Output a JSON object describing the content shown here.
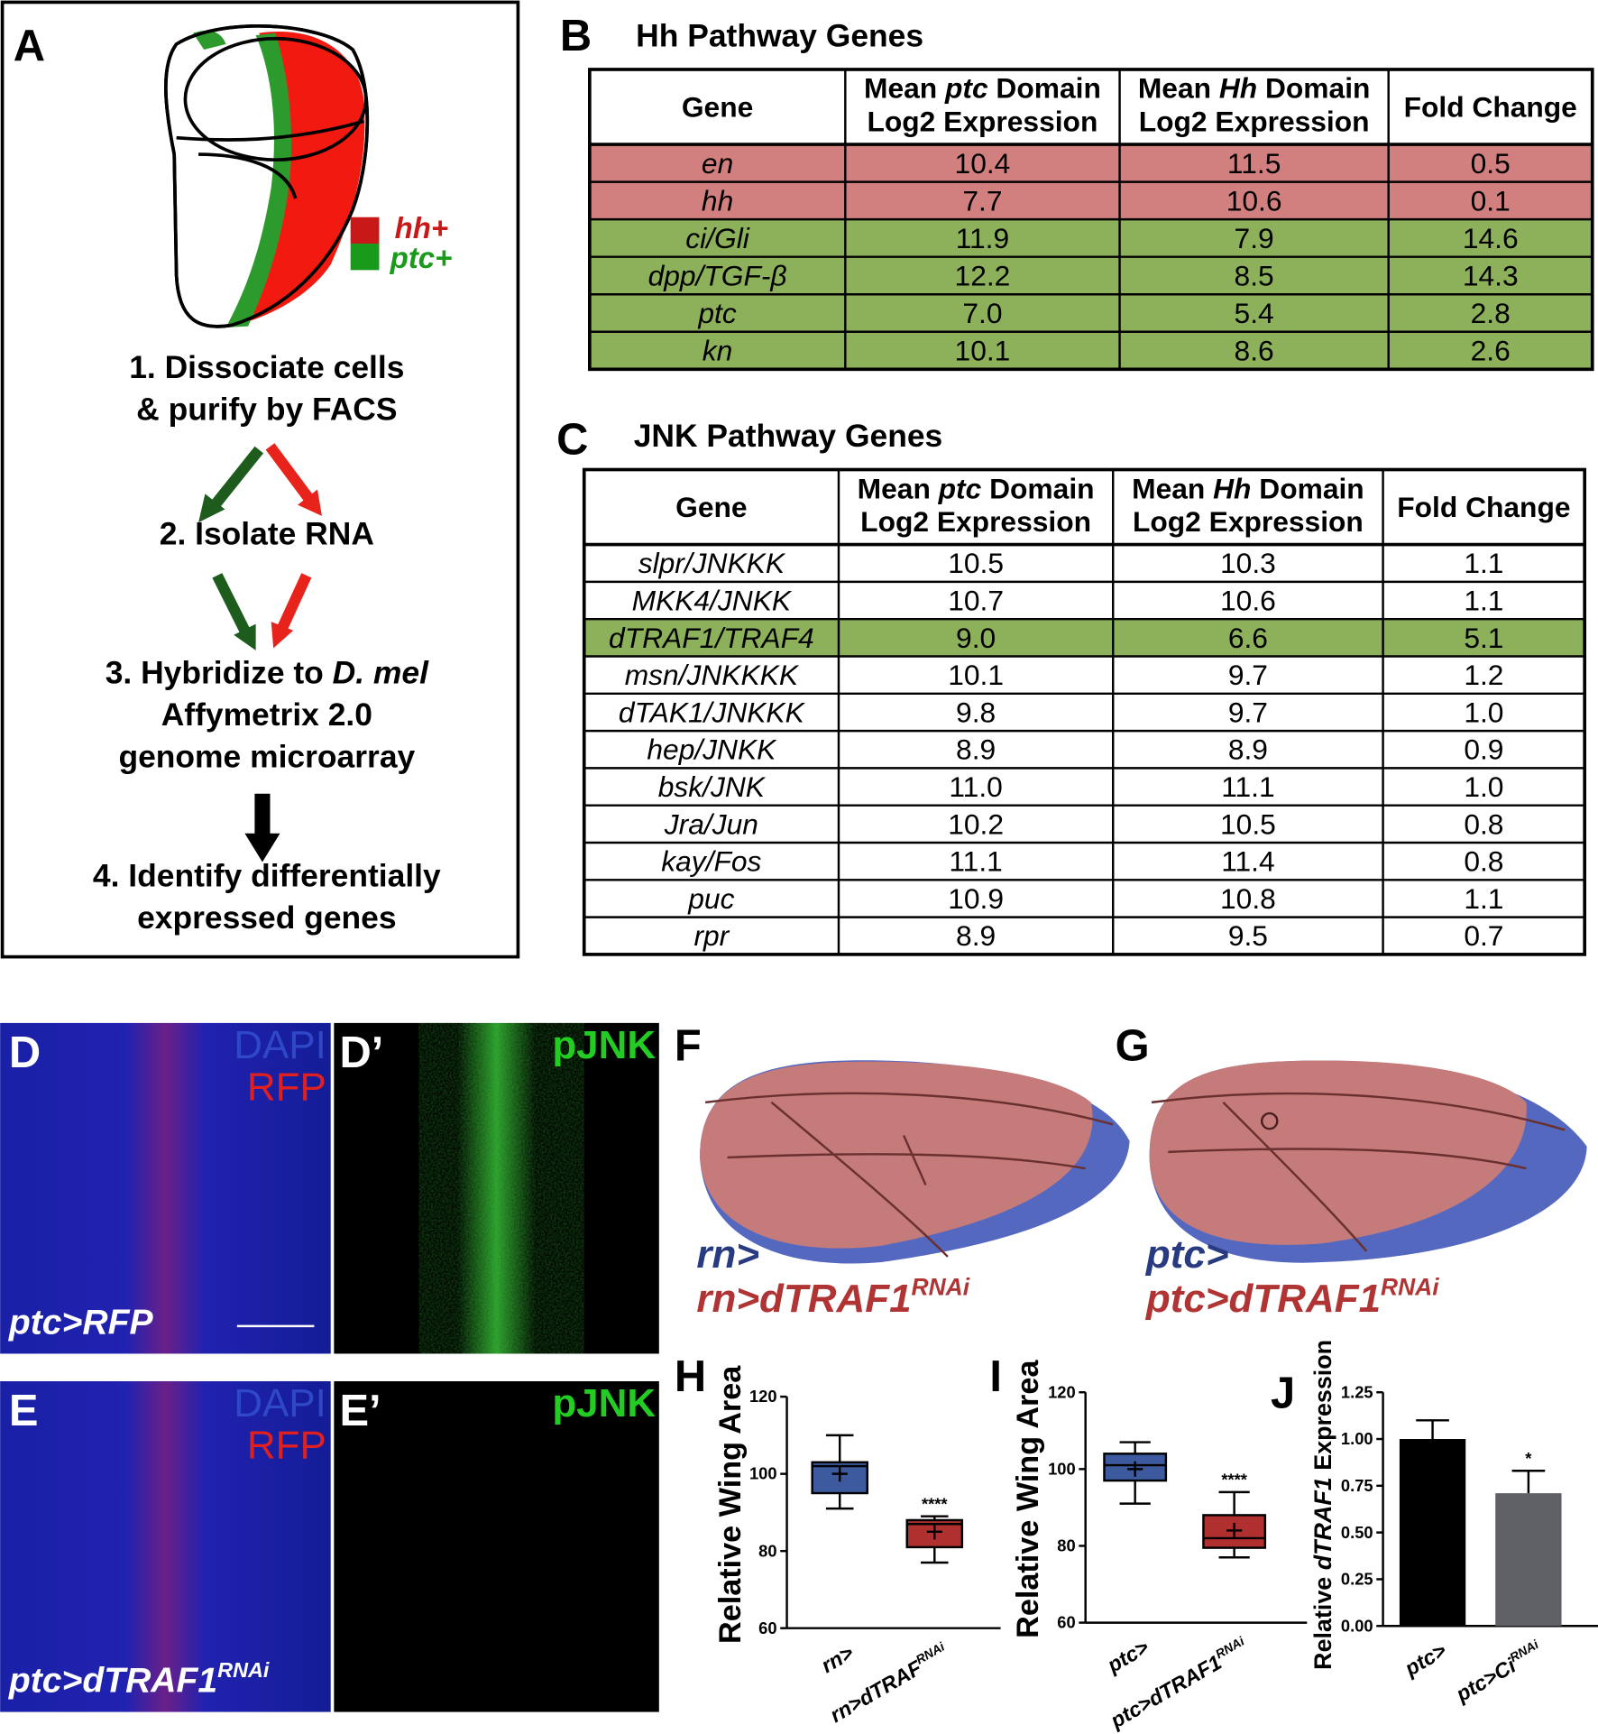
{
  "panel_a": {
    "label": "A",
    "legend": [
      "hh+",
      "ptc+"
    ],
    "steps": [
      [
        "1. Dissociate cells",
        "& purify by FACS"
      ],
      [
        "2. Isolate RNA"
      ],
      [
        {
          "pre": "3. Hybridize to ",
          "em": "D. mel"
        },
        "Affymetrix 2.0",
        "genome microarray"
      ],
      [
        "4. Identify differentially",
        "expressed genes"
      ]
    ]
  },
  "table_b": {
    "label": "B",
    "title": "Hh Pathway Genes",
    "header": [
      "Gene",
      {
        "line1_pre": "Mean ",
        "line1_em": "ptc",
        "line1_post": " Domain",
        "line2": "Log2 Expression"
      },
      {
        "line1_pre": "Mean ",
        "line1_em": "Hh",
        "line1_post": " Domain",
        "line2": "Log2 Expression"
      },
      "Fold Change"
    ],
    "rows": [
      {
        "color": "#d27f7f",
        "cells": [
          "en",
          "10.4",
          "11.5",
          "0.5"
        ]
      },
      {
        "color": "#d27f7f",
        "cells": [
          "hh",
          "7.7",
          "10.6",
          "0.1"
        ]
      },
      {
        "color": "#8db15a",
        "cells": [
          "ci/Gli",
          "11.9",
          "7.9",
          "14.6"
        ]
      },
      {
        "color": "#8db15a",
        "cells": [
          "dpp/TGF-β",
          "12.2",
          "8.5",
          "14.3"
        ]
      },
      {
        "color": "#8db15a",
        "cells": [
          "ptc",
          "7.0",
          "5.4",
          "2.8"
        ]
      },
      {
        "color": "#8db15a",
        "cells": [
          "kn",
          "10.1",
          "8.6",
          "2.6"
        ]
      }
    ]
  },
  "table_c": {
    "label": "C",
    "title": "JNK Pathway Genes",
    "header": [
      "Gene",
      {
        "line1_pre": "Mean ",
        "line1_em": "ptc",
        "line1_post": " Domain",
        "line2": "Log2 Expression"
      },
      {
        "line1_pre": "Mean ",
        "line1_em": "Hh",
        "line1_post": " Domain",
        "line2": "Log2 Expression"
      },
      "Fold Change"
    ],
    "rows": [
      {
        "cells": [
          "slpr/JNKKK",
          "10.5",
          "10.3",
          "1.1"
        ]
      },
      {
        "cells": [
          "MKK4/JNKK",
          "10.7",
          "10.6",
          "1.1"
        ]
      },
      {
        "color": "#8db15a",
        "cells": [
          "dTRAF1/TRAF4",
          "9.0",
          "6.6",
          "5.1"
        ]
      },
      {
        "cells": [
          "msn/JNKKKK",
          "10.1",
          "9.7",
          "1.2"
        ]
      },
      {
        "cells": [
          "dTAK1/JNKKK",
          "9.8",
          "9.7",
          "1.0"
        ]
      },
      {
        "cells": [
          "hep/JNKK",
          "8.9",
          "8.9",
          "0.9"
        ]
      },
      {
        "cells": [
          "bsk/JNK",
          "11.0",
          "11.1",
          "1.0"
        ]
      },
      {
        "cells": [
          "Jra/Jun",
          "10.2",
          "10.5",
          "0.8"
        ]
      },
      {
        "cells": [
          "kay/Fos",
          "11.1",
          "11.4",
          "0.8"
        ]
      },
      {
        "cells": [
          "puc",
          "10.9",
          "10.8",
          "1.1"
        ]
      },
      {
        "cells": [
          "rpr",
          "8.9",
          "9.5",
          "0.7"
        ]
      }
    ]
  },
  "panel_d": {
    "label": "D",
    "stains": [
      "DAPI",
      "RFP"
    ],
    "genotype": "ptc>RFP"
  },
  "panel_d2": {
    "label": "D’",
    "stain": "pJNK"
  },
  "panel_e": {
    "label": "E",
    "stains": [
      "DAPI",
      "RFP"
    ],
    "genotype": {
      "text": "ptc>dTRAF1",
      "sup": "RNAi"
    }
  },
  "panel_e2": {
    "label": "E’",
    "stain": "pJNK"
  },
  "panel_f": {
    "label": "F",
    "legend": [
      "rn>",
      {
        "text": "rn>dTRAF1",
        "sup": "RNAi"
      }
    ]
  },
  "panel_g": {
    "label": "G",
    "legend": [
      "ptc>",
      {
        "text": "ptc>dTRAF1",
        "sup": "RNAi"
      }
    ]
  },
  "chart_data": [
    {
      "type": "box",
      "panel_label": "H",
      "ylabel": "Relative Wing Area",
      "categories": [
        "rn>",
        {
          "text": "rn>dTRAF",
          "sup": "RNAi"
        }
      ],
      "min": [
        91,
        77
      ],
      "q1": [
        95,
        81
      ],
      "median": [
        102,
        87
      ],
      "q3": [
        103,
        88
      ],
      "max": [
        110,
        89
      ],
      "mean": [
        100,
        85
      ],
      "colors": [
        "#3d5a9e",
        "#b03030"
      ],
      "annotations": [
        {
          "index": 1,
          "text": "****"
        }
      ],
      "ylim": [
        60,
        120
      ],
      "yticks": [
        60,
        80,
        100,
        120
      ]
    },
    {
      "type": "box",
      "panel_label": "I",
      "ylabel": "Relative Wing Area",
      "categories": [
        "ptc>",
        {
          "text": "ptc>dTRAF1",
          "sup": "RNAi"
        }
      ],
      "min": [
        91,
        77
      ],
      "q1": [
        97,
        79.5
      ],
      "median": [
        101,
        82
      ],
      "q3": [
        104,
        88
      ],
      "max": [
        107,
        94
      ],
      "mean": [
        100,
        84
      ],
      "colors": [
        "#3d5a9e",
        "#b03030"
      ],
      "annotations": [
        {
          "index": 1,
          "text": "****"
        }
      ],
      "ylim": [
        60,
        120
      ],
      "yticks": [
        60,
        80,
        100,
        120
      ]
    },
    {
      "type": "bar",
      "panel_label": "J",
      "ylabel": {
        "pre": "Relative ",
        "em": "dTRAF1",
        "post": " Expression"
      },
      "categories": [
        "ptc>",
        {
          "text": "ptc>Ci",
          "sup": "RNAi"
        }
      ],
      "values": [
        1.0,
        0.71
      ],
      "errors": [
        0.1,
        0.12
      ],
      "colors": [
        "#000000",
        "#5f5f66"
      ],
      "annotations": [
        {
          "index": 1,
          "text": "*"
        }
      ],
      "ylim": [
        0,
        1.25
      ],
      "yticks": [
        {
          "value": 0,
          "label": "0.00"
        },
        0.25,
        {
          "value": 0.5,
          "label": "0.50"
        },
        0.75,
        {
          "value": 1,
          "label": "1.00"
        },
        1.25
      ]
    }
  ]
}
